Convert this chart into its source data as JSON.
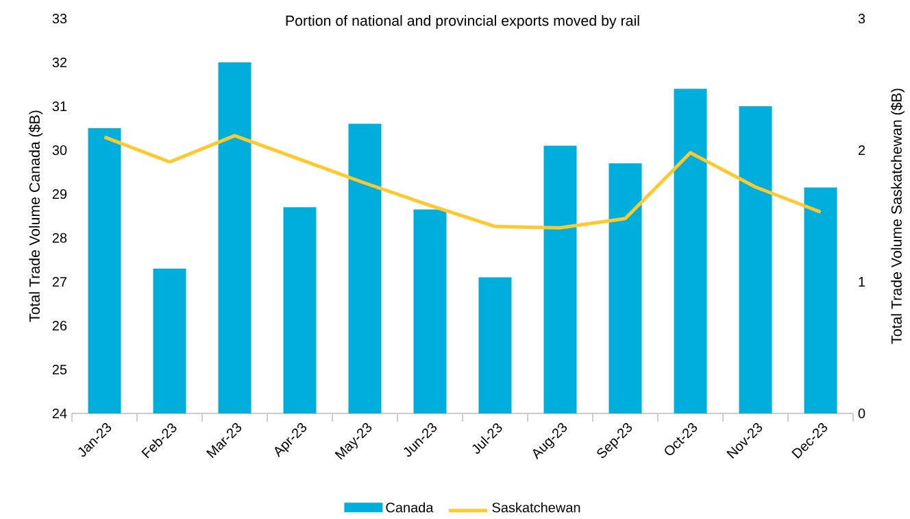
{
  "chart_data": {
    "type": "bar",
    "title": "Portion of national and provincial exports moved by rail",
    "ylabel": "Total Trade  Volume Canada ($B)",
    "y2label": "Total Trade Volume Saskatchewan ($B)",
    "categories": [
      "Jan-23",
      "Feb-23",
      "Mar-23",
      "Apr-23",
      "May-23",
      "Jun-23",
      "Jul-23",
      "Aug-23",
      "Sep-23",
      "Oct-23",
      "Nov-23",
      "Dec-23"
    ],
    "series": [
      {
        "name": "Canada",
        "color": "#00aedb",
        "values": [
          30.5,
          27.3,
          32.0,
          28.7,
          30.6,
          28.65,
          27.1,
          30.1,
          29.7,
          31.4,
          31.0,
          29.15
        ]
      },
      {
        "name": "Saskatchewan",
        "type": "line",
        "axis": "y2",
        "color": "#ffc92f",
        "values": [
          2.1,
          1.91,
          2.11,
          1.93,
          1.75,
          1.58,
          1.42,
          1.41,
          1.48,
          1.98,
          1.72,
          1.53
        ]
      }
    ],
    "ylim": [
      24,
      33
    ],
    "yticks": [
      24,
      25,
      26,
      27,
      28,
      29,
      30,
      31,
      32,
      33
    ],
    "y2lim": [
      0,
      3
    ],
    "y2ticks": [
      0,
      1,
      2,
      3
    ],
    "legend": "bottom",
    "grid": false,
    "marker": "none"
  }
}
